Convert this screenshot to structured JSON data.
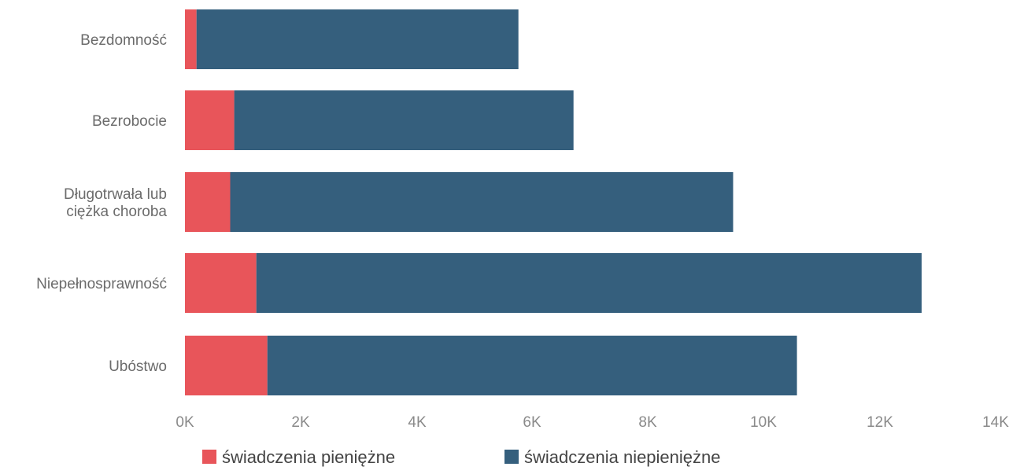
{
  "chart_data": {
    "type": "bar",
    "orientation": "horizontal",
    "stacked": true,
    "categories": [
      "Bezdomność",
      "Bezrobocie",
      [
        "Długotrwała lub",
        "ciężka choroba"
      ],
      "Niepełnosprawność",
      "Ubóstwo"
    ],
    "series": [
      {
        "name": "świadczenia pieniężne",
        "color": "#e8555a",
        "values": [
          200,
          850,
          780,
          1230,
          1420
        ]
      },
      {
        "name": "świadczenia niepieniężne",
        "color": "#355f7d",
        "values": [
          5550,
          5850,
          8670,
          11470,
          9130
        ]
      }
    ],
    "x_ticks": [
      "0K",
      "2K",
      "4K",
      "6K",
      "8K",
      "10K",
      "12K",
      "14K"
    ],
    "xlim": [
      0,
      14000
    ],
    "grid": false,
    "legend_position": "bottom"
  }
}
